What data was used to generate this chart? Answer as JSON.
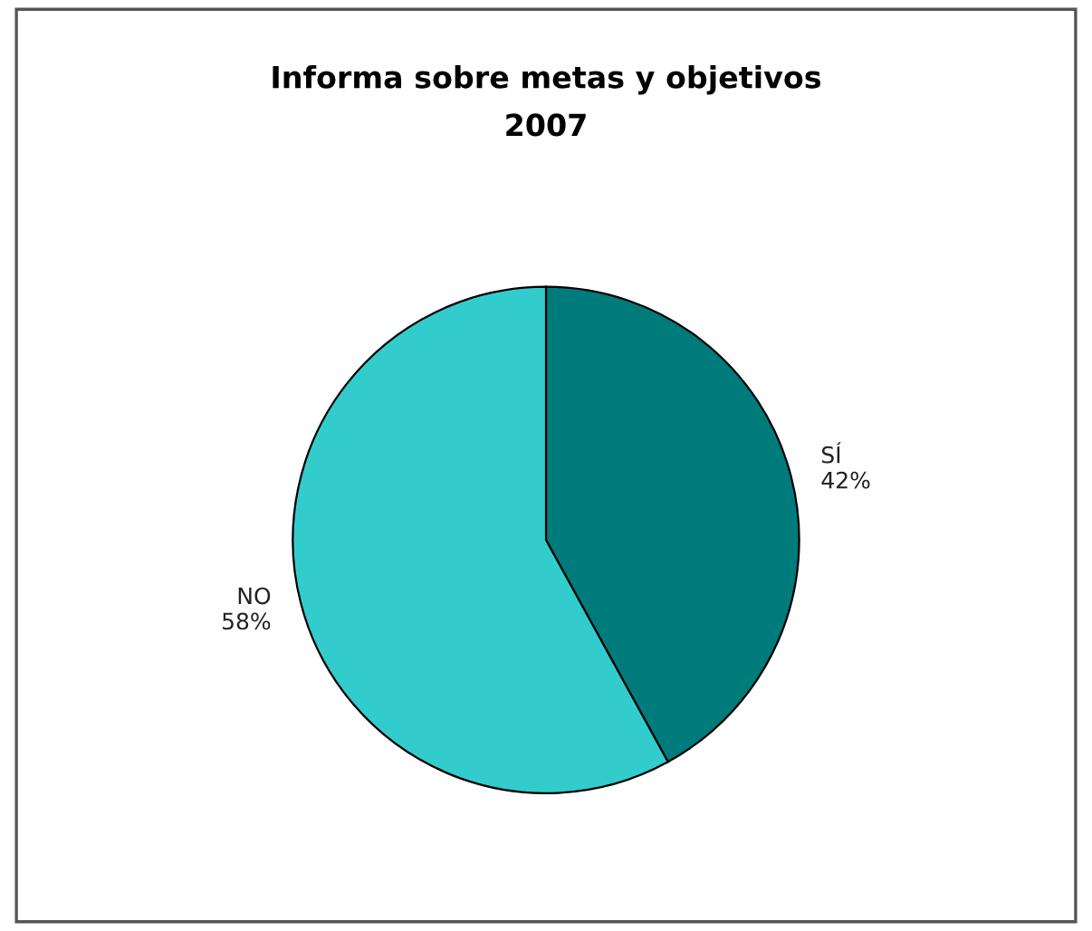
{
  "chart_data": {
    "type": "pie",
    "title": "Informa sobre metas y objetivos\n2007",
    "categories": [
      "SÍ",
      "NO"
    ],
    "values": [
      42,
      58
    ],
    "value_labels": [
      "42%",
      "58%"
    ],
    "colors": [
      "#007b7b",
      "#33cccc"
    ]
  }
}
